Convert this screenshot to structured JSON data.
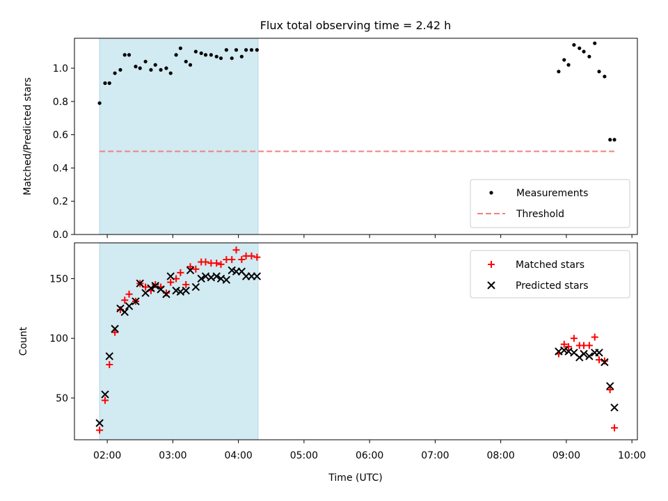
{
  "title": "Flux total observing time = 2.42 h",
  "colors": {
    "shade": "#add8e6",
    "measurement": "#000000",
    "threshold": "#f08080",
    "matched": "#ff0000",
    "predicted": "#000000"
  },
  "chart_data": [
    {
      "type": "scatter",
      "ylabel": "Matched/Predicted stars",
      "ylim": [
        0.0,
        1.18
      ],
      "yticks": [
        0.0,
        0.2,
        0.4,
        0.6,
        0.8,
        1.0
      ],
      "ytick_labels": [
        "0.0",
        "0.2",
        "0.4",
        "0.6",
        "0.8",
        "1.0"
      ],
      "xlim": [
        "01:30",
        "10:05"
      ],
      "xticks_minutes": [
        120,
        180,
        240,
        300,
        360,
        420,
        480,
        540,
        600
      ],
      "shaded_x": [
        "01:53",
        "04:18"
      ],
      "legend_position": "lower right",
      "legend": [
        "Measurements",
        "Threshold"
      ],
      "series": [
        {
          "name": "Measurements",
          "marker": "dot",
          "x": [
            "01:53",
            "01:58",
            "02:02",
            "02:07",
            "02:12",
            "02:16",
            "02:20",
            "02:26",
            "02:30",
            "02:35",
            "02:40",
            "02:44",
            "02:49",
            "02:54",
            "02:58",
            "03:03",
            "03:07",
            "03:12",
            "03:16",
            "03:21",
            "03:26",
            "03:30",
            "03:35",
            "03:40",
            "03:44",
            "03:49",
            "03:54",
            "03:58",
            "04:03",
            "04:07",
            "04:12",
            "04:17",
            "08:53",
            "08:58",
            "09:02",
            "09:07",
            "09:12",
            "09:16",
            "09:21",
            "09:26",
            "09:30",
            "09:35",
            "09:40",
            "09:44"
          ],
          "y": [
            0.79,
            0.91,
            0.91,
            0.97,
            0.99,
            1.08,
            1.08,
            1.01,
            1.0,
            1.04,
            0.99,
            1.02,
            0.99,
            1.0,
            0.97,
            1.08,
            1.12,
            1.04,
            1.02,
            1.1,
            1.09,
            1.08,
            1.08,
            1.07,
            1.06,
            1.11,
            1.06,
            1.11,
            1.07,
            1.11,
            1.11,
            1.11,
            0.98,
            1.05,
            1.02,
            1.14,
            1.12,
            1.1,
            1.07,
            1.15,
            0.98,
            0.95,
            0.57,
            0.57
          ]
        },
        {
          "name": "Threshold",
          "marker": "dashed-line",
          "x": [
            "01:53",
            "09:44"
          ],
          "y": [
            0.5,
            0.5
          ]
        }
      ]
    },
    {
      "type": "scatter",
      "ylabel": "Count",
      "xlabel": "Time (UTC)",
      "ylim": [
        15,
        180
      ],
      "yticks": [
        50,
        100,
        150
      ],
      "ytick_labels": [
        "50",
        "100",
        "150"
      ],
      "xlim": [
        "01:30",
        "10:05"
      ],
      "xticks_minutes": [
        120,
        180,
        240,
        300,
        360,
        420,
        480,
        540,
        600
      ],
      "xtick_labels": [
        "02:00",
        "03:00",
        "04:00",
        "05:00",
        "06:00",
        "07:00",
        "08:00",
        "09:00",
        "10:00"
      ],
      "shaded_x": [
        "01:53",
        "04:18"
      ],
      "legend_position": "upper right",
      "legend": [
        "Matched stars",
        "Predicted stars"
      ],
      "series": [
        {
          "name": "Matched stars",
          "marker": "plus",
          "x": [
            "01:53",
            "01:58",
            "02:02",
            "02:07",
            "02:12",
            "02:16",
            "02:20",
            "02:26",
            "02:30",
            "02:35",
            "02:40",
            "02:44",
            "02:49",
            "02:54",
            "02:58",
            "03:03",
            "03:07",
            "03:12",
            "03:16",
            "03:21",
            "03:26",
            "03:30",
            "03:35",
            "03:40",
            "03:44",
            "03:49",
            "03:54",
            "03:58",
            "04:03",
            "04:07",
            "04:12",
            "04:17",
            "08:53",
            "08:58",
            "09:02",
            "09:07",
            "09:12",
            "09:16",
            "09:21",
            "09:26",
            "09:30",
            "09:35",
            "09:40",
            "09:44"
          ],
          "y": [
            23,
            48,
            78,
            105,
            124,
            132,
            137,
            131,
            146,
            143,
            140,
            145,
            143,
            138,
            147,
            150,
            155,
            145,
            160,
            158,
            164,
            164,
            163,
            163,
            162,
            166,
            166,
            174,
            166,
            169,
            169,
            168,
            87,
            95,
            93,
            100,
            94,
            94,
            94,
            101,
            82,
            81,
            57,
            25
          ]
        },
        {
          "name": "Predicted stars",
          "marker": "x",
          "x": [
            "01:53",
            "01:58",
            "02:02",
            "02:07",
            "02:12",
            "02:16",
            "02:20",
            "02:26",
            "02:30",
            "02:35",
            "02:40",
            "02:44",
            "02:49",
            "02:54",
            "02:58",
            "03:03",
            "03:07",
            "03:12",
            "03:16",
            "03:21",
            "03:26",
            "03:30",
            "03:35",
            "03:40",
            "03:44",
            "03:49",
            "03:54",
            "03:58",
            "04:03",
            "04:07",
            "04:12",
            "04:17",
            "08:53",
            "08:58",
            "09:02",
            "09:07",
            "09:12",
            "09:16",
            "09:21",
            "09:26",
            "09:30",
            "09:35",
            "09:40",
            "09:44"
          ],
          "y": [
            29,
            53,
            85,
            108,
            125,
            122,
            127,
            131,
            146,
            138,
            142,
            144,
            141,
            137,
            152,
            140,
            139,
            140,
            157,
            143,
            150,
            152,
            151,
            152,
            150,
            149,
            157,
            156,
            156,
            152,
            152,
            152,
            89,
            90,
            89,
            88,
            84,
            87,
            85,
            88,
            88,
            80,
            60,
            42
          ]
        }
      ]
    }
  ]
}
